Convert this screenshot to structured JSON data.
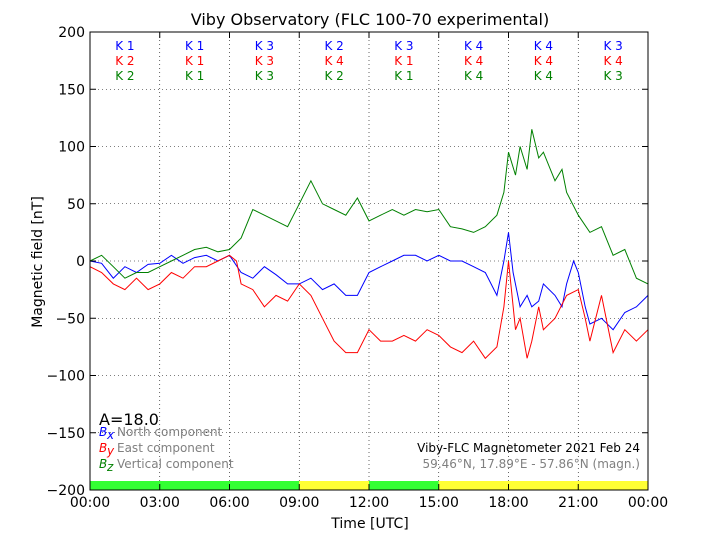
{
  "chart_data": {
    "type": "line",
    "title": "Viby Observatory (FLC 100-70 experimental)",
    "xlabel": "Time [UTC]",
    "ylabel": "Magnetic field [nT]",
    "xlim": [
      0,
      24
    ],
    "ylim": [
      -200,
      200
    ],
    "x_tick_values": [
      0,
      3,
      6,
      9,
      12,
      15,
      18,
      21,
      24
    ],
    "x_tick_labels": [
      "00:00",
      "03:00",
      "06:00",
      "09:00",
      "12:00",
      "15:00",
      "18:00",
      "21:00",
      "00:00"
    ],
    "y_tick_values": [
      -200,
      -150,
      -100,
      -50,
      0,
      50,
      100,
      150,
      200
    ],
    "y_tick_labels": [
      "−200",
      "−150",
      "−100",
      "−50",
      "0",
      "50",
      "100",
      "150",
      "200"
    ],
    "grid": true,
    "legend_position": "bottom-left",
    "series": [
      {
        "name": "North component",
        "symbol": "B",
        "subscript": "x",
        "color": "#0000ff",
        "x": [
          0,
          0.5,
          1,
          1.5,
          2,
          2.5,
          3,
          3.5,
          4,
          4.5,
          5,
          5.5,
          6,
          6.5,
          7,
          7.5,
          8,
          8.5,
          9,
          9.5,
          10,
          10.5,
          11,
          11.5,
          12,
          12.5,
          13,
          13.5,
          14,
          14.5,
          15,
          15.5,
          16,
          16.5,
          17,
          17.5,
          17.8,
          18,
          18.2,
          18.5,
          18.8,
          19,
          19.3,
          19.5,
          20,
          20.3,
          20.5,
          20.8,
          21,
          21.3,
          21.5,
          22,
          22.5,
          23,
          23.5,
          24
        ],
        "values": [
          0,
          -2,
          -15,
          -5,
          -10,
          -3,
          -2,
          5,
          -2,
          3,
          5,
          0,
          5,
          -10,
          -15,
          -5,
          -12,
          -20,
          -20,
          -15,
          -25,
          -20,
          -30,
          -30,
          -10,
          -5,
          0,
          5,
          5,
          0,
          5,
          0,
          0,
          -5,
          -10,
          -30,
          0,
          25,
          -10,
          -40,
          -30,
          -40,
          -35,
          -20,
          -30,
          -40,
          -20,
          0,
          -10,
          -40,
          -55,
          -50,
          -60,
          -45,
          -40,
          -30
        ]
      },
      {
        "name": "East component",
        "symbol": "B",
        "subscript": "y",
        "color": "#ff0000",
        "x": [
          0,
          0.5,
          1,
          1.5,
          2,
          2.5,
          3,
          3.5,
          4,
          4.5,
          5,
          5.5,
          6,
          6.3,
          6.5,
          7,
          7.5,
          8,
          8.5,
          9,
          9.5,
          10,
          10.5,
          11,
          11.5,
          12,
          12.5,
          13,
          13.5,
          14,
          14.5,
          15,
          15.5,
          16,
          16.5,
          17,
          17.5,
          17.8,
          18,
          18.3,
          18.5,
          18.8,
          19,
          19.3,
          19.5,
          20,
          20.5,
          21,
          21.3,
          21.5,
          22,
          22.5,
          23,
          23.5,
          24
        ],
        "values": [
          -5,
          -10,
          -20,
          -25,
          -15,
          -25,
          -20,
          -10,
          -15,
          -5,
          -5,
          0,
          5,
          0,
          -20,
          -25,
          -40,
          -30,
          -35,
          -20,
          -30,
          -50,
          -70,
          -80,
          -80,
          -60,
          -70,
          -70,
          -65,
          -70,
          -60,
          -65,
          -75,
          -80,
          -70,
          -85,
          -75,
          -40,
          0,
          -60,
          -50,
          -85,
          -70,
          -40,
          -60,
          -50,
          -30,
          -25,
          -50,
          -70,
          -30,
          -80,
          -60,
          -70,
          -60
        ]
      },
      {
        "name": "Vertical component",
        "symbol": "B",
        "subscript": "z",
        "color": "#008000",
        "x": [
          0,
          0.5,
          1,
          1.5,
          2,
          2.5,
          3,
          3.5,
          4,
          4.5,
          5,
          5.5,
          6,
          6.5,
          7,
          7.5,
          8,
          8.5,
          9,
          9.5,
          10,
          10.5,
          11,
          11.5,
          12,
          12.5,
          13,
          13.5,
          14,
          14.5,
          15,
          15.5,
          16,
          16.5,
          17,
          17.5,
          17.8,
          18,
          18.3,
          18.5,
          18.8,
          19,
          19.3,
          19.5,
          20,
          20.3,
          20.5,
          21,
          21.5,
          22,
          22.5,
          23,
          23.5,
          24
        ],
        "values": [
          0,
          5,
          -5,
          -15,
          -10,
          -10,
          -5,
          0,
          5,
          10,
          12,
          8,
          10,
          20,
          45,
          40,
          35,
          30,
          50,
          70,
          50,
          45,
          40,
          55,
          35,
          40,
          45,
          40,
          45,
          43,
          45,
          30,
          28,
          25,
          30,
          40,
          60,
          95,
          75,
          100,
          80,
          115,
          90,
          95,
          70,
          80,
          60,
          40,
          25,
          30,
          5,
          10,
          -15,
          -20
        ]
      }
    ],
    "k_index_periods": [
      {
        "start": 0,
        "end": 3,
        "x": "K 1",
        "y": "K 2",
        "z": "K 2"
      },
      {
        "start": 3,
        "end": 6,
        "x": "K 1",
        "y": "K 1",
        "z": "K 1"
      },
      {
        "start": 6,
        "end": 9,
        "x": "K 3",
        "y": "K 3",
        "z": "K 3"
      },
      {
        "start": 9,
        "end": 12,
        "x": "K 2",
        "y": "K 4",
        "z": "K 2"
      },
      {
        "start": 12,
        "end": 15,
        "x": "K 3",
        "y": "K 1",
        "z": "K 1"
      },
      {
        "start": 15,
        "end": 18,
        "x": "K 4",
        "y": "K 4",
        "z": "K 4"
      },
      {
        "start": 18,
        "end": 21,
        "x": "K 4",
        "y": "K 4",
        "z": "K 4"
      },
      {
        "start": 21,
        "end": 24,
        "x": "K 3",
        "y": "K 4",
        "z": "K 3"
      }
    ],
    "activity_bar": [
      {
        "start": 0,
        "end": 9,
        "color": "#33ff33"
      },
      {
        "start": 9,
        "end": 12,
        "color": "#ffff33"
      },
      {
        "start": 12,
        "end": 15,
        "color": "#33ff33"
      },
      {
        "start": 15,
        "end": 24,
        "color": "#ffff33"
      }
    ],
    "a_index_label": "A=18.0",
    "info_line1": "Viby-FLC Magnetometer 2021 Feb 24",
    "info_line2": "59.46°N, 17.89°E - 57.86°N (magn.)"
  }
}
